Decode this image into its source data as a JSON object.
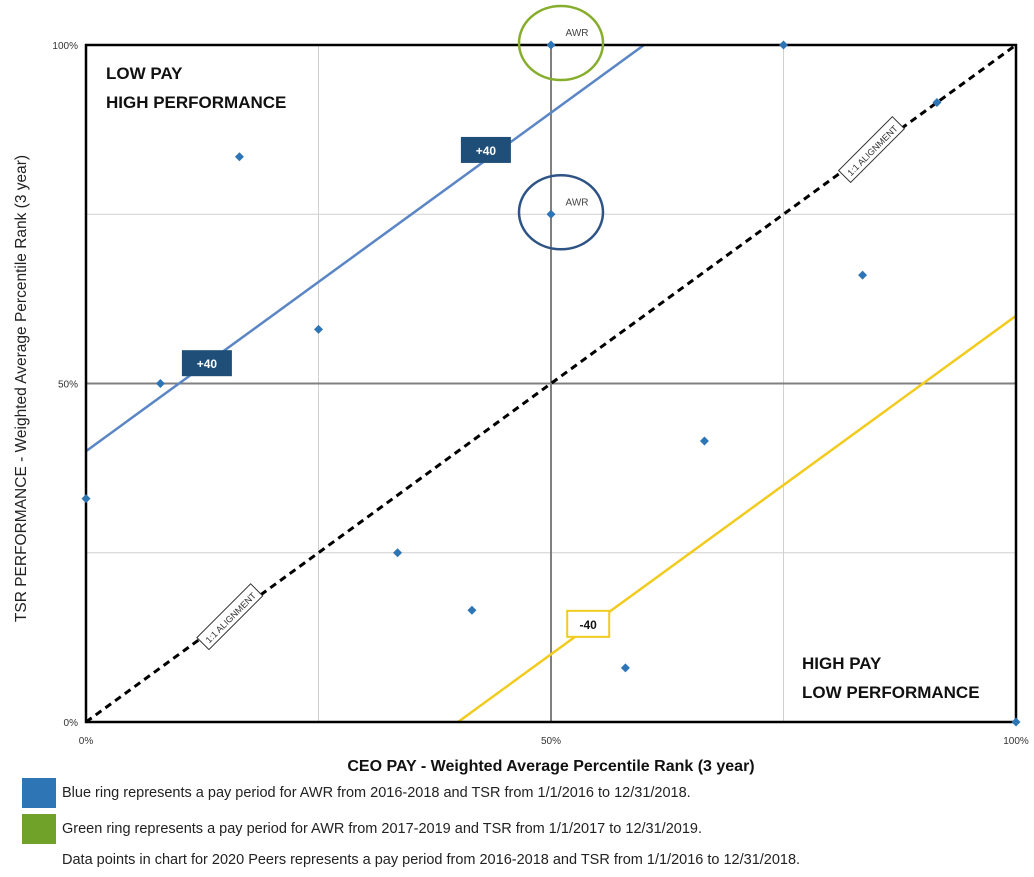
{
  "chart_data": {
    "type": "scatter",
    "xlabel": "CEO PAY - Weighted Average Percentile Rank (3 year)",
    "ylabel": "TSR PERFORMANCE  - Weighted Average Percentile Rank (3 year)",
    "xlim": [
      0,
      100
    ],
    "ylim": [
      0,
      100
    ],
    "x_ticks": [
      {
        "value": 0,
        "label": "0%"
      },
      {
        "value": 50,
        "label": "50%"
      },
      {
        "value": 100,
        "label": "100%"
      }
    ],
    "y_ticks": [
      {
        "value": 0,
        "label": "0%"
      },
      {
        "value": 50,
        "label": "50%"
      },
      {
        "value": 100,
        "label": "100%"
      }
    ],
    "grid": true,
    "points": [
      {
        "x": 0,
        "y": 33
      },
      {
        "x": 8,
        "y": 50
      },
      {
        "x": 16.5,
        "y": 83.5
      },
      {
        "x": 25,
        "y": 58
      },
      {
        "x": 33.5,
        "y": 25
      },
      {
        "x": 41.5,
        "y": 16.5
      },
      {
        "x": 50,
        "y": 75
      },
      {
        "x": 50,
        "y": 100
      },
      {
        "x": 58,
        "y": 8
      },
      {
        "x": 66.5,
        "y": 41.5
      },
      {
        "x": 75,
        "y": 100
      },
      {
        "x": 83.5,
        "y": 66
      },
      {
        "x": 91.5,
        "y": 91.5
      },
      {
        "x": 100,
        "y": 0
      }
    ],
    "lines": [
      {
        "from": [
          0,
          0
        ],
        "to": [
          100,
          100
        ],
        "style": "dashed",
        "color": "#000000",
        "label": "1:1 ALIGNMENT"
      },
      {
        "from": [
          0,
          40
        ],
        "to": [
          60,
          100
        ],
        "style": "solid",
        "color": "#5b86c5",
        "label": "+40"
      },
      {
        "from": [
          40,
          0
        ],
        "to": [
          100,
          60
        ],
        "style": "solid",
        "color": "#f2cb1f",
        "label": "-40"
      }
    ],
    "rings": [
      {
        "x": 50,
        "y": 75,
        "label": "AWR",
        "color": "#2e5485"
      },
      {
        "x": 50,
        "y": 100,
        "label": "AWR",
        "color": "#86ad2c"
      }
    ],
    "quadrant_labels": {
      "top_left": [
        "LOW PAY",
        "HIGH PERFORMANCE"
      ],
      "bottom_right": [
        "HIGH PAY",
        "LOW PERFORMANCE"
      ]
    }
  },
  "legend": [
    {
      "color": "#2e75b6",
      "text": "Blue ring represents a pay period for AWR from 2016-2018 and TSR from 1/1/2016 to 12/31/2018."
    },
    {
      "color": "#70a128",
      "text": "Green ring represents a pay period for AWR from 2017-2019 and TSR from 1/1/2017 to 12/31/2019."
    }
  ],
  "note": "Data points in chart for 2020 Peers represents a pay period from 2016-2018 and TSR from 1/1/2016 to 12/31/2018.",
  "colors": {
    "point": "#2e75b6",
    "grid_minor": "#d0d0d0",
    "grid_center": "#808080",
    "label_box_blue": "#1f4e79",
    "frame": "#000000"
  }
}
